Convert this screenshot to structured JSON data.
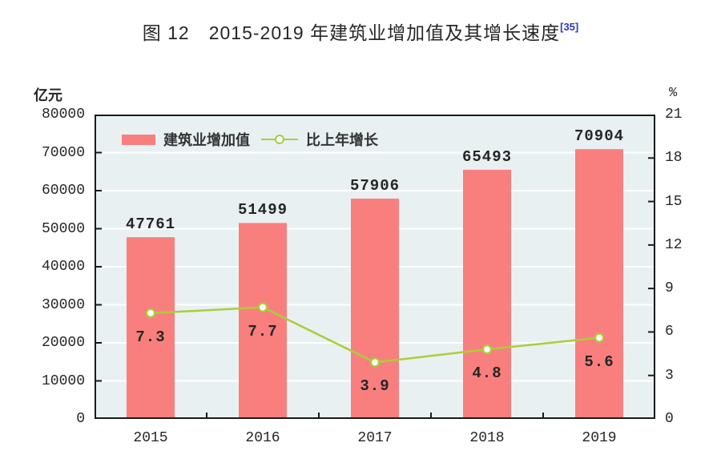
{
  "title": {
    "text": "图 12　2015-2019 年建筑业增加值及其增长速度",
    "superscript": "[35]"
  },
  "units": {
    "left": "亿元",
    "right": "%"
  },
  "legend": [
    {
      "label": "建筑业增加值",
      "swatch": "bar-swatch"
    },
    {
      "label": "比上年增长",
      "swatch": "line-swatch"
    }
  ],
  "colors": {
    "bar": "#F97F7F",
    "line": "#A9CE38",
    "plot_bg": "#E9F0F2",
    "grid": "#FFFFFF",
    "axis": "#1A1A1A",
    "text": "#262626",
    "superscript": "#2B38BE"
  },
  "chart_data": {
    "type": "bar+line",
    "title": "图 12　2015-2019 年建筑业增加值及其增长速度[35]",
    "categories": [
      "2015",
      "2016",
      "2017",
      "2018",
      "2019"
    ],
    "series": [
      {
        "name": "建筑业增加值",
        "type": "bar",
        "axis": "left",
        "unit": "亿元",
        "values": [
          47761,
          51499,
          57906,
          65493,
          70904
        ]
      },
      {
        "name": "比上年增长",
        "type": "line",
        "axis": "right",
        "unit": "%",
        "values": [
          7.3,
          7.7,
          3.9,
          4.8,
          5.6
        ]
      }
    ],
    "left_axis": {
      "unit": "亿元",
      "min": 0,
      "max": 80000,
      "step": 10000,
      "ticks": [
        80000,
        70000,
        60000,
        50000,
        40000,
        30000,
        20000,
        10000,
        0
      ]
    },
    "right_axis": {
      "unit": "%",
      "min": 0,
      "max": 21,
      "step": 3,
      "ticks": [
        21,
        18,
        15,
        12,
        9,
        6,
        3,
        0
      ]
    },
    "grid": true,
    "legend_position": "top-left-inside"
  }
}
